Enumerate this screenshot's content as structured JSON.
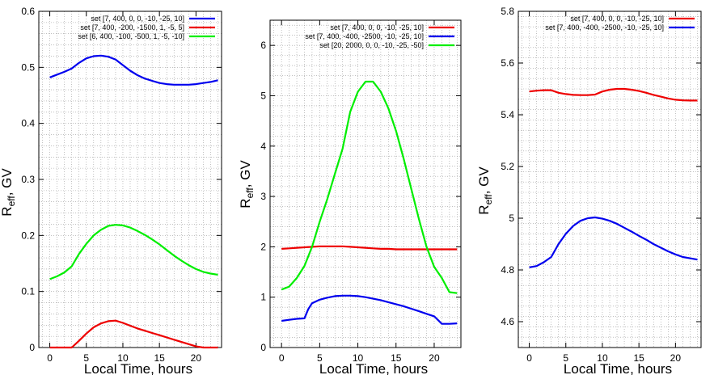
{
  "chart_data": [
    {
      "type": "line",
      "xlabel": "Local Time, hours",
      "ylabel_main": "R",
      "ylabel_sub": "eff",
      "ylabel_unit": ", GV",
      "xlim": [
        -1.5,
        23.5
      ],
      "ylim": [
        0,
        0.6
      ],
      "xticks": [
        0,
        5,
        10,
        15,
        20
      ],
      "xtick_labels": [
        "0",
        "5",
        "10",
        "15",
        "20"
      ],
      "yticks": [
        0,
        0.1,
        0.2,
        0.3,
        0.4,
        0.5,
        0.6
      ],
      "ytick_labels": [
        "0",
        "0.1",
        "0.2",
        "0.3",
        "0.4",
        "0.5",
        "0.6"
      ],
      "grid": true,
      "legend_position": "top-right",
      "series": [
        {
          "name": "set [7, 400, 0, 0, -10, -25, 10]",
          "color": "#0000ee",
          "x": [
            0,
            1,
            2,
            3,
            4,
            5,
            6,
            7,
            8,
            9,
            10,
            11,
            12,
            13,
            14,
            15,
            16,
            17,
            18,
            19,
            20,
            21,
            22,
            23
          ],
          "y": [
            0.482,
            0.487,
            0.492,
            0.498,
            0.508,
            0.516,
            0.52,
            0.521,
            0.519,
            0.514,
            0.504,
            0.494,
            0.486,
            0.48,
            0.476,
            0.472,
            0.47,
            0.469,
            0.469,
            0.469,
            0.47,
            0.472,
            0.474,
            0.477
          ]
        },
        {
          "name": "set [7, 400, -200, -1500, 1, -5, 5]",
          "color": "#ee0000",
          "x": [
            0,
            1,
            2,
            3,
            4,
            5,
            6,
            7,
            8,
            9,
            10,
            11,
            12,
            13,
            14,
            15,
            16,
            17,
            18,
            19,
            20,
            21,
            22,
            23
          ],
          "y": [
            0.0,
            0.0,
            0.0,
            0.0,
            0.012,
            0.025,
            0.036,
            0.043,
            0.047,
            0.048,
            0.044,
            0.039,
            0.034,
            0.03,
            0.026,
            0.022,
            0.018,
            0.014,
            0.01,
            0.006,
            0.002,
            0.0,
            0.0,
            0.0
          ]
        },
        {
          "name": "set [6, 400, -100, -500, 1, -5, -10]",
          "color": "#00ee00",
          "x": [
            0,
            1,
            2,
            3,
            4,
            5,
            6,
            7,
            8,
            9,
            10,
            11,
            12,
            13,
            14,
            15,
            16,
            17,
            18,
            19,
            20,
            21,
            22,
            23
          ],
          "y": [
            0.122,
            0.127,
            0.134,
            0.145,
            0.167,
            0.185,
            0.2,
            0.21,
            0.217,
            0.219,
            0.218,
            0.214,
            0.208,
            0.201,
            0.193,
            0.184,
            0.174,
            0.164,
            0.155,
            0.147,
            0.14,
            0.135,
            0.132,
            0.13
          ]
        }
      ]
    },
    {
      "type": "line",
      "xlabel": "Local Time, hours",
      "ylabel_main": "R",
      "ylabel_sub": "eff",
      "ylabel_unit": ", GV",
      "xlim": [
        -1.5,
        23.5
      ],
      "ylim": [
        0,
        6.5
      ],
      "xticks": [
        0,
        5,
        10,
        15,
        20
      ],
      "xtick_labels": [
        "0",
        "5",
        "10",
        "15",
        "20"
      ],
      "yticks": [
        0,
        1,
        2,
        3,
        4,
        5,
        6
      ],
      "ytick_labels": [
        "0",
        "1",
        "2",
        "3",
        "4",
        "5",
        "6"
      ],
      "grid": true,
      "legend_position": "top-right",
      "series": [
        {
          "name": "set [7, 400, 0, 0, -10, -25, 10]",
          "color": "#ee0000",
          "x": [
            0,
            1,
            2,
            3,
            4,
            5,
            6,
            7,
            8,
            9,
            10,
            11,
            12,
            13,
            14,
            15,
            16,
            17,
            18,
            19,
            20,
            21,
            22,
            23
          ],
          "y": [
            1.96,
            1.97,
            1.98,
            1.99,
            2.0,
            2.01,
            2.01,
            2.01,
            2.01,
            2.0,
            1.99,
            1.98,
            1.97,
            1.96,
            1.96,
            1.95,
            1.95,
            1.95,
            1.95,
            1.95,
            1.95,
            1.95,
            1.95,
            1.95
          ]
        },
        {
          "name": "set [7, 400, -400, -2500, -10, -25, 10]",
          "color": "#0000ee",
          "x": [
            0,
            1,
            2,
            3,
            3.5,
            4,
            5,
            6,
            7,
            8,
            9,
            10,
            11,
            12,
            13,
            14,
            15,
            16,
            17,
            18,
            19,
            20,
            21,
            22,
            23
          ],
          "y": [
            0.53,
            0.55,
            0.57,
            0.58,
            0.76,
            0.88,
            0.95,
            0.99,
            1.02,
            1.03,
            1.03,
            1.02,
            1.0,
            0.97,
            0.94,
            0.9,
            0.86,
            0.82,
            0.77,
            0.72,
            0.67,
            0.62,
            0.47,
            0.47,
            0.48
          ]
        },
        {
          "name": "set [20, 2000, 0, 0, -10, -25, -50]",
          "color": "#00ee00",
          "x": [
            0,
            1,
            2,
            3,
            4,
            5,
            6,
            7,
            8,
            9,
            10,
            11,
            12,
            13,
            14,
            15,
            16,
            17,
            18,
            19,
            20,
            21,
            22,
            23
          ],
          "y": [
            1.15,
            1.21,
            1.38,
            1.62,
            2.0,
            2.5,
            2.95,
            3.45,
            3.95,
            4.68,
            5.08,
            5.28,
            5.28,
            5.08,
            4.75,
            4.3,
            3.75,
            3.15,
            2.55,
            2.0,
            1.6,
            1.38,
            1.1,
            1.08
          ]
        }
      ]
    },
    {
      "type": "line",
      "xlabel": "Local Time, hours",
      "ylabel_main": "R",
      "ylabel_sub": "eff",
      "ylabel_unit": ", GV",
      "xlim": [
        -1.5,
        23.5
      ],
      "ylim": [
        4.5,
        5.8
      ],
      "xticks": [
        0,
        5,
        10,
        15,
        20
      ],
      "xtick_labels": [
        "0",
        "5",
        "10",
        "15",
        "20"
      ],
      "yticks": [
        4.6,
        4.8,
        5.0,
        5.2,
        5.4,
        5.6,
        5.8
      ],
      "ytick_labels": [
        "4.6",
        "4.8",
        "5",
        "5.2",
        "5.4",
        "5.6",
        "5.8"
      ],
      "grid": true,
      "legend_position": "top-right",
      "series": [
        {
          "name": "set [7, 400, 0, 0, -10, -25, 10]",
          "color": "#ee0000",
          "x": [
            0,
            1,
            2,
            3,
            4,
            5,
            6,
            7,
            8,
            9,
            10,
            11,
            12,
            13,
            14,
            15,
            16,
            17,
            18,
            19,
            20,
            21,
            22,
            23
          ],
          "y": [
            5.49,
            5.493,
            5.495,
            5.495,
            5.485,
            5.48,
            5.477,
            5.476,
            5.476,
            5.478,
            5.49,
            5.497,
            5.5,
            5.5,
            5.497,
            5.492,
            5.485,
            5.477,
            5.47,
            5.463,
            5.458,
            5.456,
            5.455,
            5.455
          ]
        },
        {
          "name": "set [7, 400, -400, -2500, -10, -25, 10]",
          "color": "#0000ee",
          "x": [
            0,
            1,
            2,
            3,
            4,
            5,
            6,
            7,
            8,
            9,
            10,
            11,
            12,
            13,
            14,
            15,
            16,
            17,
            18,
            19,
            20,
            21,
            22,
            23
          ],
          "y": [
            4.81,
            4.815,
            4.83,
            4.85,
            4.9,
            4.94,
            4.97,
            4.99,
            5.0,
            5.003,
            4.998,
            4.99,
            4.978,
            4.963,
            4.948,
            4.932,
            4.917,
            4.9,
            4.886,
            4.872,
            4.86,
            4.85,
            4.845,
            4.84
          ]
        }
      ]
    }
  ]
}
